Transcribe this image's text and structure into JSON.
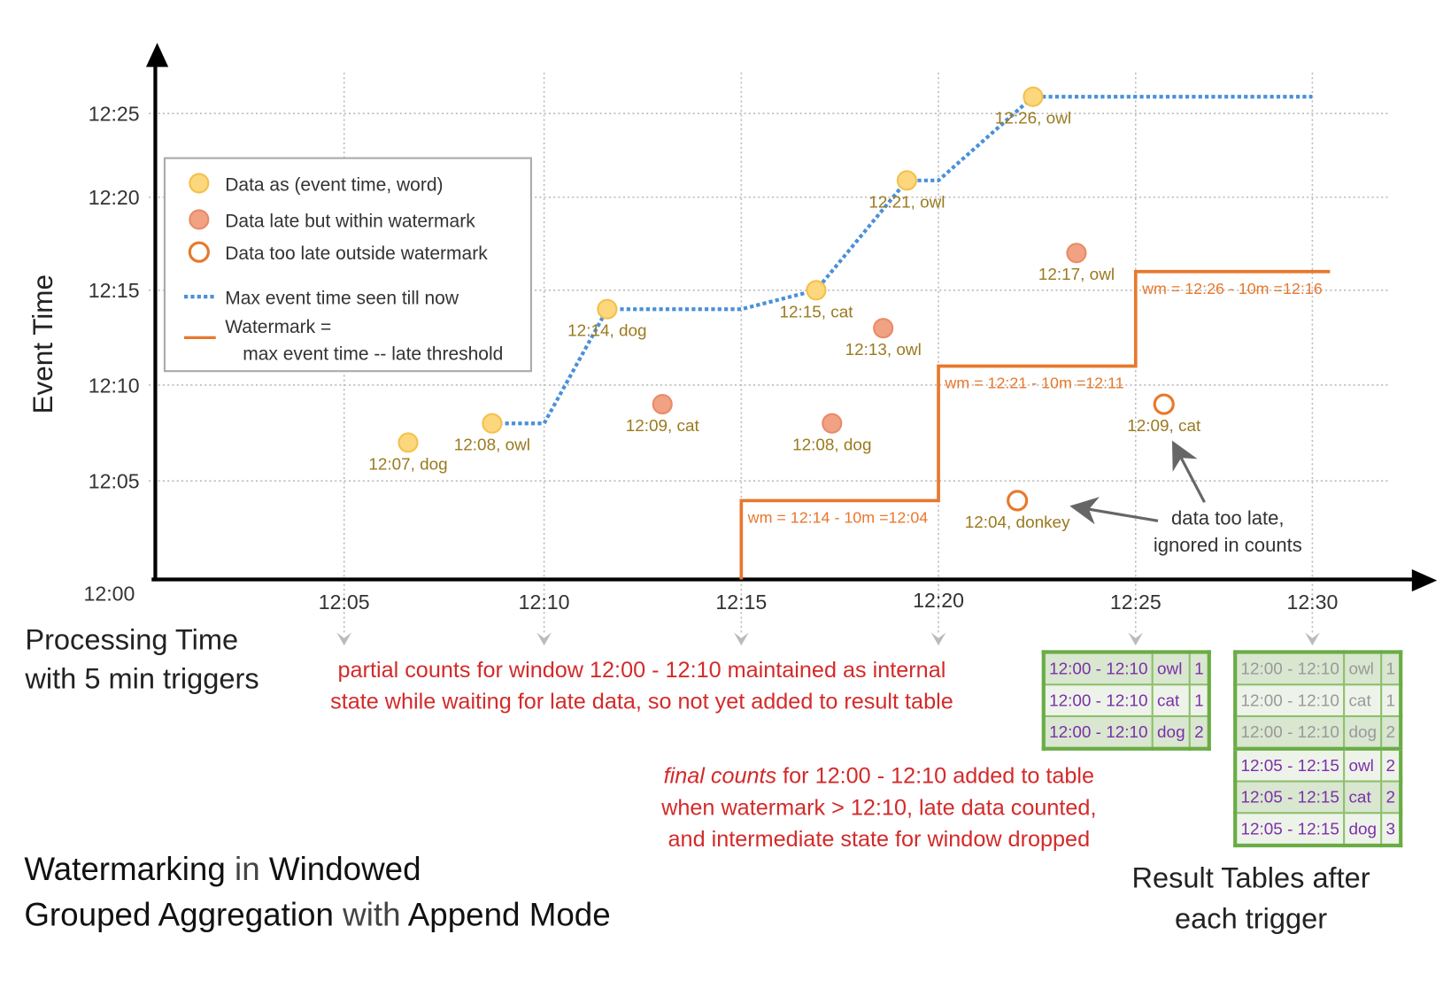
{
  "title": {
    "line1": [
      {
        "text": "Watermarking",
        "strong": true
      },
      {
        "text": " in ",
        "strong": false
      },
      {
        "text": "Windowed",
        "strong": true
      }
    ],
    "line2": [
      {
        "text": "Grouped Aggregation",
        "strong": true
      },
      {
        "text": " with ",
        "strong": false
      },
      {
        "text": "Append Mode",
        "strong": true
      }
    ]
  },
  "axes": {
    "y_label": "Event Time",
    "x_label_line1": "Processing Time",
    "x_label_line2": "with 5 min triggers",
    "x_ticks": [
      "12:05",
      "12:10",
      "12:15",
      "12:20",
      "12:25",
      "12:30"
    ],
    "y_ticks": [
      "12:00",
      "12:05",
      "12:10",
      "12:15",
      "12:20",
      "12:25"
    ]
  },
  "legend": {
    "items": [
      {
        "kind": "on-time",
        "label": "Data as (event time, word)"
      },
      {
        "kind": "late",
        "label": "Data late but within watermark"
      },
      {
        "kind": "too-late",
        "label": "Data too late outside watermark"
      },
      {
        "kind": "max-line",
        "label": "Max event time seen till now"
      },
      {
        "kind": "watermark-line",
        "label": "Watermark =",
        "label2": "max event time -- late threshold"
      }
    ]
  },
  "colors": {
    "on_time_fill": "#fdd77e",
    "on_time_stroke": "#f3c14a",
    "late_fill": "#f0a283",
    "late_stroke": "#e98a68",
    "watermark": "#e8782c",
    "max_line": "#4a90d9",
    "point_label": "#9a7a1e",
    "annotation_red": "#d42a2a",
    "table_text": "#7a30a8",
    "table_border": "#6aac45"
  },
  "chart_data": {
    "type": "scatter",
    "xlabel": "Processing Time",
    "ylabel": "Event Time",
    "xlim": [
      "12:00",
      "12:30"
    ],
    "ylim": [
      "12:00",
      "12:26"
    ],
    "grid": true,
    "legend_position": "top-left",
    "points": [
      {
        "processing_time": "12:06:36",
        "event_time": "12:07",
        "label": "12:07, dog",
        "kind": "on-time"
      },
      {
        "processing_time": "12:08:42",
        "event_time": "12:08",
        "label": "12:08, owl",
        "kind": "on-time"
      },
      {
        "processing_time": "12:11:36",
        "event_time": "12:14",
        "label": "12:14, dog",
        "kind": "on-time"
      },
      {
        "processing_time": "12:13:00",
        "event_time": "12:09",
        "label": "12:09, cat",
        "kind": "late"
      },
      {
        "processing_time": "12:16:54",
        "event_time": "12:15",
        "label": "12:15, cat",
        "kind": "on-time"
      },
      {
        "processing_time": "12:17:18",
        "event_time": "12:08",
        "label": "12:08, dog",
        "kind": "late"
      },
      {
        "processing_time": "12:18:36",
        "event_time": "12:13",
        "label": "12:13, owl",
        "kind": "late"
      },
      {
        "processing_time": "12:19:12",
        "event_time": "12:21",
        "label": "12:21, owl",
        "kind": "on-time"
      },
      {
        "processing_time": "12:22:00",
        "event_time": "12:04",
        "label": "12:04, donkey",
        "kind": "too-late"
      },
      {
        "processing_time": "12:22:24",
        "event_time": "12:26",
        "label": "12:26, owl",
        "kind": "on-time"
      },
      {
        "processing_time": "12:23:30",
        "event_time": "12:17",
        "label": "12:17, owl",
        "kind": "late"
      },
      {
        "processing_time": "12:25:48",
        "event_time": "12:09",
        "label": "12:09, cat",
        "kind": "too-late"
      }
    ],
    "max_event_time_line": [
      [
        "12:08:42",
        "12:08"
      ],
      [
        "12:10:00",
        "12:08"
      ],
      [
        "12:11:36",
        "12:14"
      ],
      [
        "12:15:00",
        "12:14"
      ],
      [
        "12:16:54",
        "12:15"
      ],
      [
        "12:19:12",
        "12:21"
      ],
      [
        "12:20:00",
        "12:21"
      ],
      [
        "12:22:24",
        "12:26"
      ],
      [
        "12:30:00",
        "12:26"
      ]
    ],
    "watermark_line": [
      [
        "12:15:00",
        "12:00"
      ],
      [
        "12:15:00",
        "12:04"
      ],
      [
        "12:20:00",
        "12:04"
      ],
      [
        "12:20:00",
        "12:11"
      ],
      [
        "12:25:00",
        "12:11"
      ],
      [
        "12:25:00",
        "12:16"
      ],
      [
        "12:30:30",
        "12:16"
      ]
    ],
    "watermark_labels": [
      {
        "processing_time": "12:15:00",
        "event_time": "12:04",
        "text": "wm = 12:14 - 10m =12:04"
      },
      {
        "processing_time": "12:20:00",
        "event_time": "12:11",
        "text": "wm = 12:21 - 10m =12:11"
      },
      {
        "processing_time": "12:25:00",
        "event_time": "12:16",
        "text": "wm = 12:26 - 10m =12:16"
      }
    ]
  },
  "annotations": {
    "too_late_line1": "data too late,",
    "too_late_line2": "ignored in counts",
    "partial_line1": "partial counts for window 12:00 - 12:10 maintained as internal",
    "partial_line2": "state while waiting for late data, so not yet added  to result table",
    "final_em": "final counts",
    "final_line1_rest": " for 12:00 - 12:10 added to table",
    "final_line2": "when watermark > 12:10, late data counted,",
    "final_line3": "and intermediate state for window dropped",
    "tables_caption_line1": "Result Tables after",
    "tables_caption_line2": "each trigger"
  },
  "result_tables": [
    {
      "trigger": "12:25",
      "rows": [
        {
          "window": "12:00 - 12:10",
          "word": "owl",
          "count": "1",
          "state": "new"
        },
        {
          "window": "12:00 - 12:10",
          "word": "cat",
          "count": "1",
          "state": "new"
        },
        {
          "window": "12:00 - 12:10",
          "word": "dog",
          "count": "2",
          "state": "new"
        }
      ]
    },
    {
      "trigger": "12:30",
      "rows": [
        {
          "window": "12:00 - 12:10",
          "word": "owl",
          "count": "1",
          "state": "previous"
        },
        {
          "window": "12:00 - 12:10",
          "word": "cat",
          "count": "1",
          "state": "previous"
        },
        {
          "window": "12:00 - 12:10",
          "word": "dog",
          "count": "2",
          "state": "previous"
        },
        {
          "window": "12:05 - 12:15",
          "word": "owl",
          "count": "2",
          "state": "new"
        },
        {
          "window": "12:05 - 12:15",
          "word": "cat",
          "count": "2",
          "state": "new"
        },
        {
          "window": "12:05 - 12:15",
          "word": "dog",
          "count": "3",
          "state": "new"
        }
      ]
    }
  ]
}
